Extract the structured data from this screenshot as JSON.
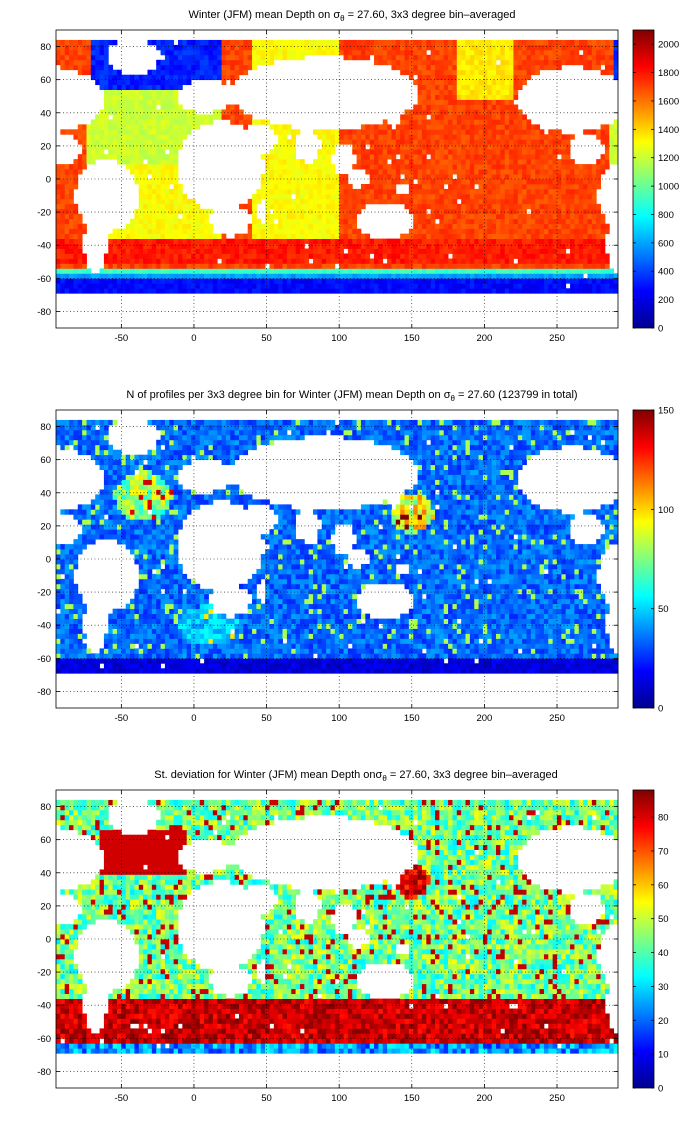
{
  "chart_data": [
    {
      "type": "heatmap",
      "title_pre": "Winter (JFM) mean Depth on σ",
      "title_sub": "θ",
      "title_post": " = 27.60, 3x3 degree bin–averaged",
      "xlabel": "",
      "ylabel": "",
      "xlim": [
        -95,
        292
      ],
      "ylim": [
        -90,
        90
      ],
      "xticks": [
        -50,
        0,
        50,
        100,
        150,
        200,
        250
      ],
      "yticks": [
        80,
        60,
        40,
        20,
        0,
        -20,
        -40,
        -60,
        -80
      ],
      "grid": true,
      "grid_style": "dotted",
      "colormap": "jet",
      "color_range": [
        0,
        2100
      ],
      "colorbar_ticks": [
        2000,
        1800,
        1600,
        1400,
        1200,
        1000,
        800,
        600,
        400,
        200,
        0
      ],
      "bin_size_deg": 3,
      "field": "mean_depth"
    },
    {
      "type": "heatmap",
      "title_pre": "N of profiles per 3x3 degree bin for Winter (JFM) mean Depth on σ",
      "title_sub": "θ",
      "title_post": " = 27.60 (123799 in total)",
      "xlabel": "",
      "ylabel": "",
      "xlim": [
        -95,
        292
      ],
      "ylim": [
        -90,
        90
      ],
      "xticks": [
        -50,
        0,
        50,
        100,
        150,
        200,
        250
      ],
      "yticks": [
        80,
        60,
        40,
        20,
        0,
        -20,
        -40,
        -60,
        -80
      ],
      "grid": true,
      "grid_style": "dotted",
      "colormap": "jet",
      "color_range": [
        0,
        150
      ],
      "colorbar_ticks": [
        150,
        100,
        50,
        0
      ],
      "bin_size_deg": 3,
      "total_profiles": 123799,
      "field": "profile_count"
    },
    {
      "type": "heatmap",
      "title_pre": "St. deviation for Winter (JFM) mean Depth onσ",
      "title_sub": "θ",
      "title_post": " = 27.60, 3x3 degree bin–averaged",
      "xlabel": "",
      "ylabel": "",
      "xlim": [
        -95,
        292
      ],
      "ylim": [
        -90,
        90
      ],
      "xticks": [
        -50,
        0,
        50,
        100,
        150,
        200,
        250
      ],
      "yticks": [
        80,
        60,
        40,
        20,
        0,
        -20,
        -40,
        -60,
        -80
      ],
      "grid": true,
      "grid_style": "dotted",
      "colormap": "jet",
      "color_range": [
        0,
        88
      ],
      "colorbar_ticks": [
        80,
        70,
        60,
        50,
        40,
        30,
        20,
        10,
        0
      ],
      "bin_size_deg": 3,
      "field": "std_depth"
    }
  ]
}
